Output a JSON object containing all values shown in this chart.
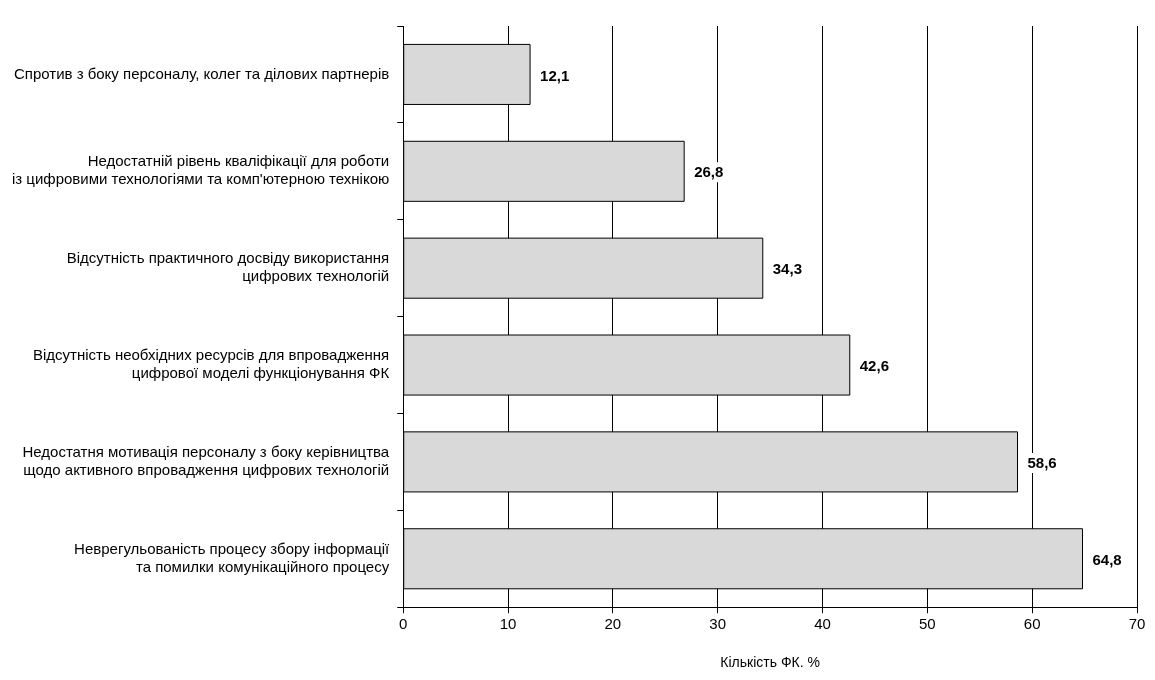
{
  "chart_data": {
    "type": "bar",
    "orientation": "horizontal",
    "categories": [
      "Спротив з боку персоналу, колег та ділових партнерів",
      "Недостатній рівень кваліфікації для роботи\nіз цифровими технологіями та комп'ютерною технікою",
      "Відсутність практичного досвіду використання\nцифрових технологій",
      "Відсутність необхідних ресурсів для впровадження\nцифрової моделі функціонування ФК",
      "Недостатня мотивація персоналу з боку керівництва\nщодо активного впровадження цифрових технологій",
      "Неврегульованість процесу збору інформації\nта помилки комунікаційного процесу"
    ],
    "values": [
      12.1,
      26.8,
      34.3,
      42.6,
      58.6,
      64.8
    ],
    "value_labels": [
      "12,1",
      "26,8",
      "34,3",
      "42,6",
      "58,6",
      "64,8"
    ],
    "color": "#d9d9d9",
    "xlabel": "Кількість ФК. %",
    "xlim": [
      0,
      70
    ],
    "xticks": [
      0,
      10,
      20,
      30,
      40,
      50,
      60,
      70
    ],
    "grid": "x"
  }
}
